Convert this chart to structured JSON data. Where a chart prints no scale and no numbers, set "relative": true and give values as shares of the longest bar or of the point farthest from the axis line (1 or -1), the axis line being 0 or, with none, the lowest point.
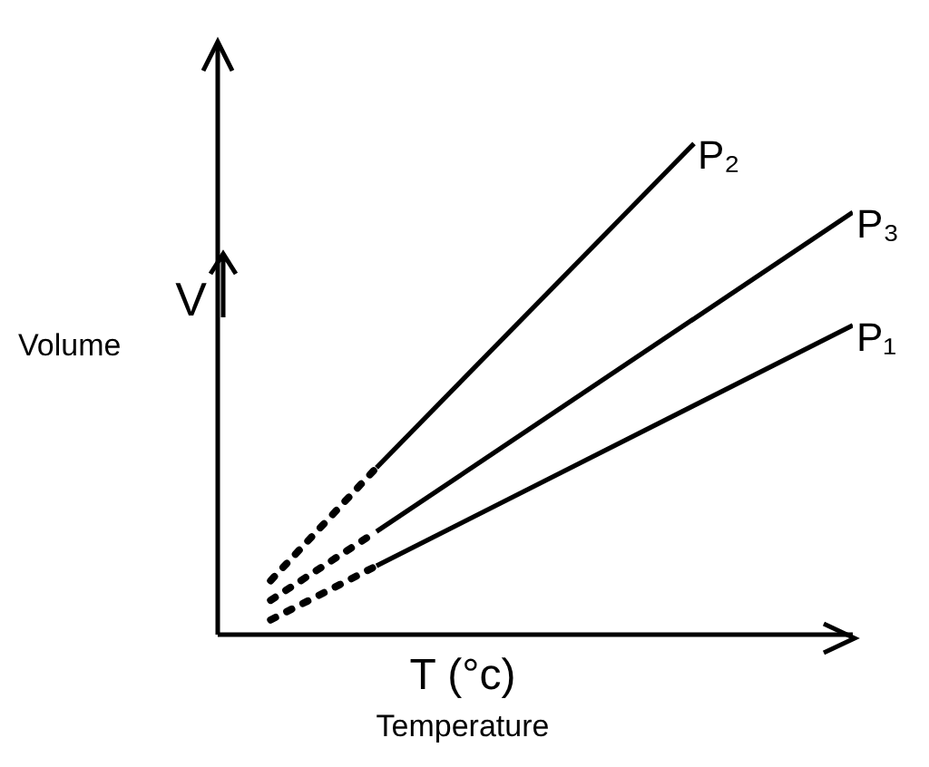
{
  "chart_data": {
    "type": "line",
    "relative": true,
    "xlabel": "T (°c)",
    "ylabel": "V",
    "annotations": [
      "Volume",
      "Temperature"
    ],
    "categories": [
      null,
      null,
      null,
      null,
      null,
      null,
      null,
      null,
      null,
      null,
      null,
      null,
      null
    ],
    "marker": "none",
    "grid": false,
    "legend": false,
    "series": [
      {
        "color": "#000000",
        "line_style": "dotted",
        "values": [
          null,
          0.11,
          null,
          0.34,
          null,
          null,
          null,
          null,
          null,
          null,
          null,
          null,
          null
        ]
      },
      {
        "name": "P₂",
        "color": "#000000",
        "line_style": "solid",
        "values": [
          null,
          null,
          null,
          0.34,
          null,
          null,
          null,
          null,
          null,
          1,
          null,
          null,
          null
        ]
      },
      {
        "color": "#000000",
        "line_style": "dotted",
        "values": [
          null,
          0.07,
          null,
          0.21,
          null,
          null,
          null,
          null,
          null,
          null,
          null,
          null,
          null
        ]
      },
      {
        "name": "P₃",
        "color": "#000000",
        "line_style": "solid",
        "values": [
          null,
          null,
          null,
          0.21,
          null,
          null,
          null,
          null,
          null,
          null,
          null,
          null,
          0.86
        ]
      },
      {
        "color": "#000000",
        "line_style": "dotted",
        "values": [
          null,
          0.03,
          null,
          0.14,
          null,
          null,
          null,
          null,
          null,
          null,
          null,
          null,
          null
        ]
      },
      {
        "name": "P₁",
        "color": "#000000",
        "line_style": "solid",
        "values": [
          null,
          null,
          null,
          0.14,
          null,
          null,
          null,
          null,
          null,
          null,
          null,
          null,
          0.63
        ]
      }
    ]
  }
}
